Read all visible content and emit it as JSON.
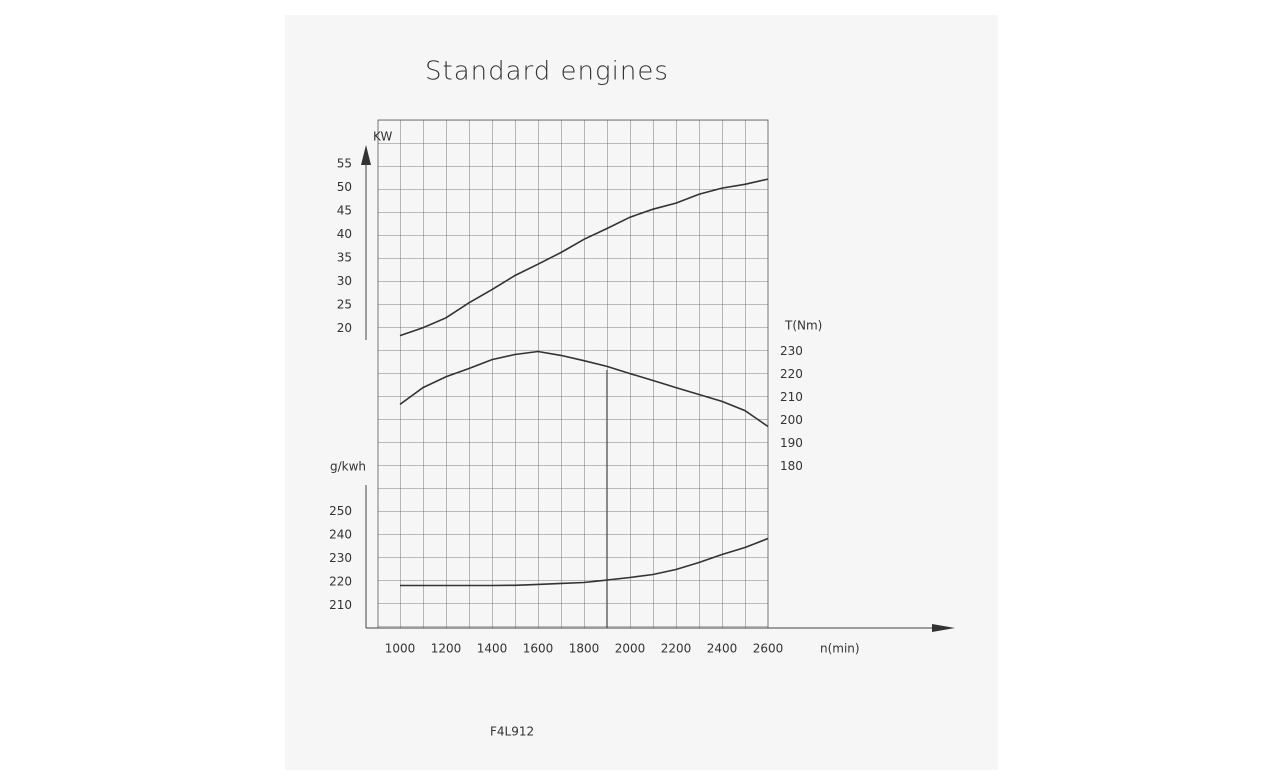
{
  "chart_data": [
    {
      "type": "line",
      "title": "Standard engines",
      "ylabel": "KW",
      "x": [
        1000,
        1100,
        1200,
        1300,
        1400,
        1500,
        1600,
        1700,
        1800,
        1900,
        2000,
        2100,
        2200,
        2300,
        2400,
        2500,
        2600
      ],
      "values": [
        18.5,
        20.2,
        22.3,
        25.5,
        28.3,
        31.3,
        33.7,
        36.2,
        39,
        41.3,
        43.7,
        45.4,
        46.7,
        48.6,
        49.9,
        50.7,
        51.8
      ],
      "color": "#333333",
      "xlim": [
        1000,
        2600
      ],
      "ylim": [
        18,
        58
      ],
      "yticks": [
        20,
        25,
        30,
        35,
        40,
        45,
        50,
        55
      ]
    },
    {
      "type": "line",
      "ylabel": "T(Nm)",
      "x": [
        1000,
        1100,
        1200,
        1300,
        1400,
        1500,
        1600,
        1700,
        1800,
        1900,
        2000,
        2100,
        2200,
        2300,
        2400,
        2500,
        2600
      ],
      "values": [
        207,
        214.3,
        219,
        222.6,
        226.5,
        228.7,
        230,
        228.3,
        226,
        223.5,
        220.4,
        217.4,
        214.3,
        211.3,
        208.3,
        204.3,
        197.4
      ],
      "color": "#333333",
      "xlim": [
        1000,
        2600
      ],
      "ylim": [
        175,
        235
      ],
      "yticks": [
        180,
        190,
        200,
        210,
        220,
        230
      ]
    },
    {
      "type": "line",
      "ylabel": "g/kwh",
      "xlabel": "n(min)",
      "annotations": [
        "F4L912"
      ],
      "x": [
        1000,
        1100,
        1200,
        1300,
        1400,
        1500,
        1600,
        1700,
        1800,
        1900,
        2000,
        2100,
        2200,
        2300,
        2400,
        2500,
        2600
      ],
      "values": [
        218.5,
        218.5,
        218.5,
        218.5,
        218.5,
        218.6,
        219,
        219.4,
        219.8,
        220.8,
        221.9,
        223.2,
        225.3,
        228.3,
        231.7,
        234.7,
        238.5
      ],
      "color": "#333333",
      "xlim": [
        1000,
        2600
      ],
      "ylim": [
        200,
        260
      ],
      "yticks": [
        210,
        220,
        230,
        240,
        250
      ],
      "xticks": [
        1000,
        1200,
        1400,
        1600,
        1800,
        2000,
        2200,
        2400,
        2600
      ]
    }
  ]
}
